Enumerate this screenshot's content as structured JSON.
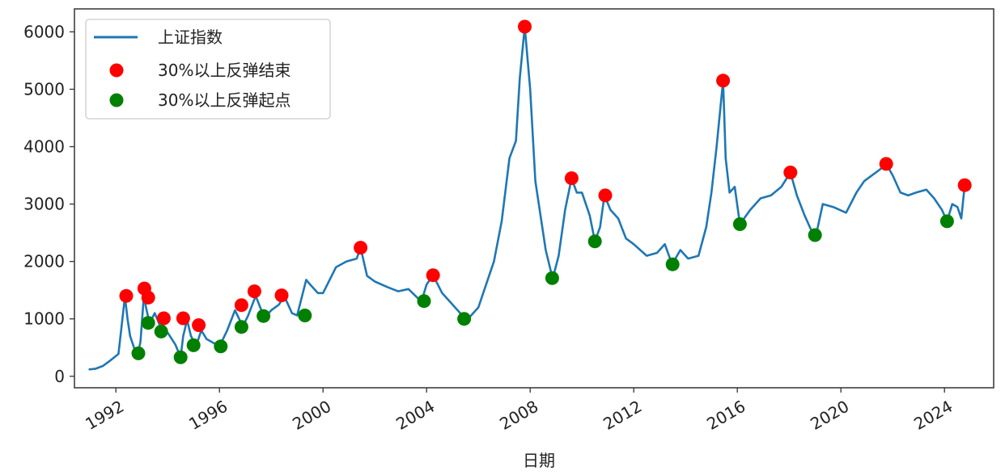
{
  "chart_data": {
    "type": "line",
    "xlabel": "日期",
    "ylabel": "",
    "xlim": [
      1990.4,
      2025.9
    ],
    "ylim": [
      -200,
      6400
    ],
    "x_ticks": [
      1992,
      1996,
      2000,
      2004,
      2008,
      2012,
      2016,
      2020,
      2024
    ],
    "y_ticks": [
      0,
      1000,
      2000,
      3000,
      4000,
      5000,
      6000
    ],
    "legend_position": "top-left",
    "grid": false,
    "colors": {
      "line": "#1f77b4",
      "end": "#ff0000",
      "start": "#008000"
    },
    "series": [
      {
        "name": "上证指数",
        "kind": "line",
        "x": [
          1990.95,
          1991.2,
          1991.5,
          1991.8,
          1992.1,
          1992.35,
          1992.45,
          1992.55,
          1992.7,
          1992.85,
          1992.95,
          1993.1,
          1993.15,
          1993.3,
          1993.5,
          1993.8,
          1994.0,
          1994.3,
          1994.5,
          1994.6,
          1994.75,
          1994.9,
          1995.1,
          1995.3,
          1995.5,
          1995.7,
          1996.0,
          1996.3,
          1996.6,
          1996.9,
          1997.1,
          1997.4,
          1997.6,
          1997.8,
          1998.0,
          1998.3,
          1998.5,
          1998.8,
          1999.0,
          1999.35,
          1999.5,
          1999.8,
          2000.0,
          2000.5,
          2000.9,
          2001.3,
          2001.45,
          2001.7,
          2002.0,
          2002.5,
          2002.9,
          2003.3,
          2003.8,
          2004.0,
          2004.25,
          2004.6,
          2005.0,
          2005.4,
          2005.6,
          2006.0,
          2006.3,
          2006.6,
          2006.9,
          2007.2,
          2007.45,
          2007.6,
          2007.79,
          2008.0,
          2008.2,
          2008.4,
          2008.6,
          2008.87,
          2009.1,
          2009.35,
          2009.6,
          2009.8,
          2010.0,
          2010.3,
          2010.5,
          2010.7,
          2010.87,
          2011.1,
          2011.4,
          2011.7,
          2012.0,
          2012.5,
          2012.9,
          2013.2,
          2013.48,
          2013.8,
          2014.1,
          2014.5,
          2014.8,
          2015.0,
          2015.2,
          2015.45,
          2015.55,
          2015.7,
          2015.9,
          2016.1,
          2016.5,
          2016.9,
          2017.3,
          2017.7,
          2018.05,
          2018.3,
          2018.6,
          2018.9,
          2019.05,
          2019.3,
          2019.7,
          2020.2,
          2020.6,
          2020.9,
          2021.2,
          2021.5,
          2021.75,
          2022.0,
          2022.3,
          2022.6,
          2022.9,
          2023.3,
          2023.6,
          2023.9,
          2024.1,
          2024.3,
          2024.5,
          2024.65,
          2024.78
        ],
        "y": [
          120,
          130,
          180,
          280,
          390,
          1390,
          1000,
          700,
          500,
          392,
          600,
          1520,
          1230,
          920,
          1100,
          780,
          760,
          550,
          330,
          700,
          980,
          700,
          530,
          800,
          650,
          600,
          520,
          800,
          1150,
          870,
          1050,
          1400,
          1170,
          1050,
          1150,
          1250,
          1400,
          1100,
          1060,
          1680,
          1600,
          1450,
          1450,
          1900,
          2000,
          2050,
          2240,
          1750,
          1650,
          1550,
          1480,
          1520,
          1300,
          1600,
          1760,
          1450,
          1250,
          1050,
          1000,
          1200,
          1600,
          2000,
          2700,
          3800,
          4100,
          5200,
          6090,
          5000,
          3400,
          2800,
          2200,
          1700,
          2100,
          2900,
          3450,
          3200,
          3200,
          2800,
          2350,
          2600,
          3150,
          2900,
          2750,
          2400,
          2300,
          2100,
          2150,
          2300,
          1950,
          2200,
          2050,
          2100,
          2600,
          3200,
          4000,
          5150,
          3800,
          3200,
          3300,
          2650,
          2900,
          3100,
          3150,
          3300,
          3550,
          3150,
          2800,
          2500,
          2480,
          3000,
          2950,
          2850,
          3200,
          3400,
          3500,
          3600,
          3700,
          3500,
          3200,
          3150,
          3200,
          3250,
          3100,
          2900,
          2700,
          3000,
          2950,
          2750,
          3330
        ]
      },
      {
        "name": "30%以上反弹结束",
        "kind": "marker",
        "x": [
          1992.4,
          1993.1,
          1993.25,
          1993.85,
          1994.6,
          1995.2,
          1996.85,
          1997.35,
          1998.4,
          2001.45,
          2004.25,
          2007.79,
          2009.6,
          2010.9,
          2015.45,
          2018.05,
          2021.75,
          2024.78
        ],
        "y": [
          1400,
          1530,
          1370,
          1010,
          1010,
          890,
          1240,
          1480,
          1410,
          2240,
          1760,
          6090,
          3450,
          3150,
          5150,
          3550,
          3700,
          3330
        ]
      },
      {
        "name": "30%以上反弹起点",
        "kind": "marker",
        "x": [
          1992.87,
          1993.25,
          1993.75,
          1994.5,
          1995.0,
          1996.05,
          1996.85,
          1997.7,
          1999.3,
          2003.9,
          2005.45,
          2008.85,
          2010.5,
          2013.5,
          2016.1,
          2019.0,
          2024.1
        ],
        "y": [
          400,
          930,
          780,
          330,
          540,
          520,
          860,
          1050,
          1060,
          1310,
          1000,
          1710,
          2350,
          1950,
          2650,
          2460,
          2700
        ]
      }
    ]
  }
}
